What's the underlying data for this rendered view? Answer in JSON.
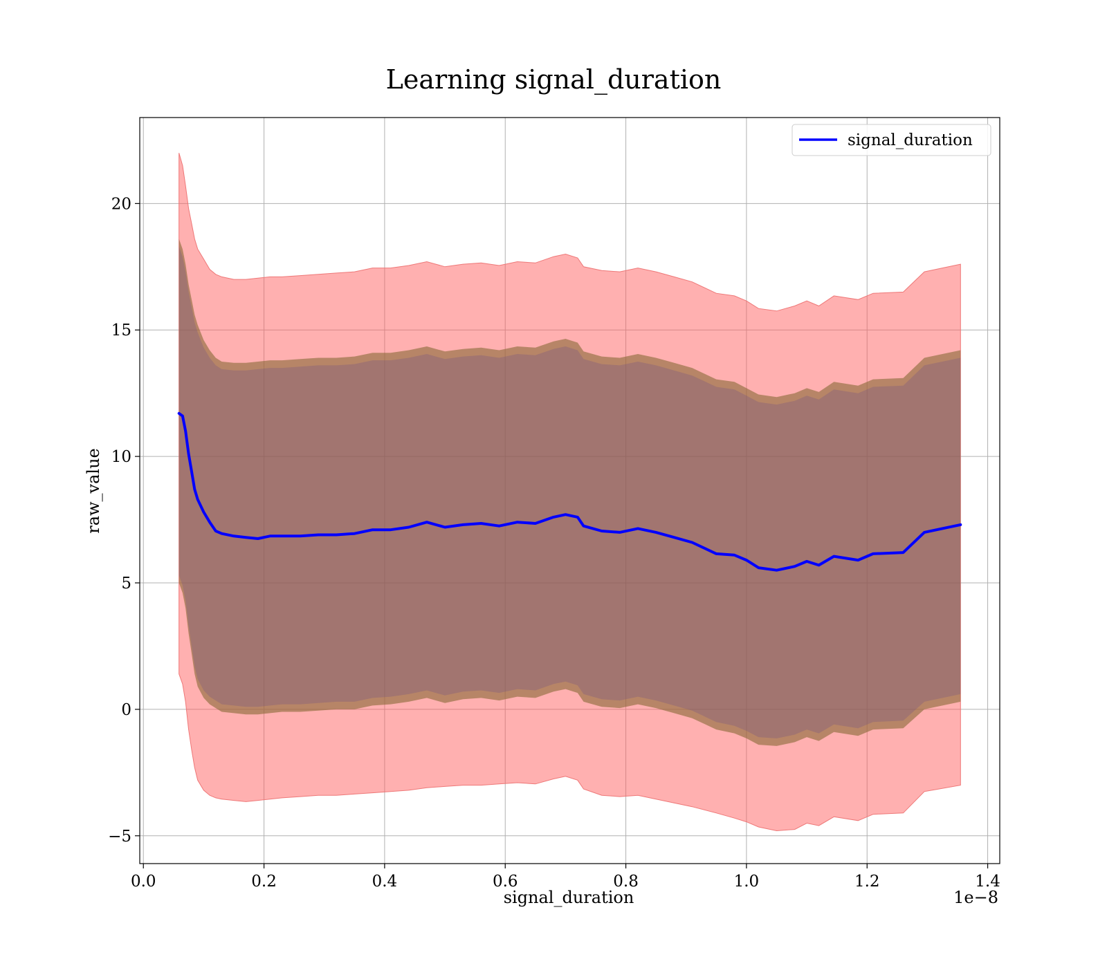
{
  "chart_data": {
    "type": "line",
    "title": "Learning signal_duration",
    "xlabel": "signal_duration",
    "ylabel": "raw_value",
    "x_offset_text": "1e−8",
    "xlim": [
      -0.006,
      1.42
    ],
    "ylim": [
      -6.1,
      23.4
    ],
    "x_ticks": [
      0.0,
      0.2,
      0.4,
      0.6,
      0.8,
      1.0,
      1.2,
      1.4
    ],
    "x_tick_labels": [
      "0.0",
      "0.2",
      "0.4",
      "0.6",
      "0.8",
      "1.0",
      "1.2",
      "1.4"
    ],
    "y_ticks": [
      -5,
      0,
      5,
      10,
      15,
      20
    ],
    "y_tick_labels": [
      "−5",
      "0",
      "5",
      "10",
      "15",
      "20"
    ],
    "grid": true,
    "legend_position": "top-right",
    "colors": {
      "line": "#0000ff",
      "outer_band": "#ff5a5a",
      "outer_band_edge": "#ee7777",
      "inner_band": "#8a6a3a",
      "inner_band_core": "#6a4a8a"
    },
    "x": [
      0.059,
      0.065,
      0.07,
      0.075,
      0.08,
      0.085,
      0.09,
      0.1,
      0.11,
      0.12,
      0.13,
      0.15,
      0.17,
      0.19,
      0.21,
      0.23,
      0.26,
      0.29,
      0.32,
      0.35,
      0.38,
      0.41,
      0.44,
      0.47,
      0.5,
      0.53,
      0.56,
      0.59,
      0.62,
      0.65,
      0.68,
      0.7,
      0.72,
      0.73,
      0.76,
      0.79,
      0.82,
      0.85,
      0.88,
      0.91,
      0.95,
      0.98,
      1.0,
      1.02,
      1.05,
      1.08,
      1.1,
      1.12,
      1.145,
      1.185,
      1.21,
      1.26,
      1.295,
      1.355
    ],
    "series": [
      {
        "name": "signal_duration",
        "values": [
          11.7,
          11.6,
          11.0,
          10.1,
          9.4,
          8.7,
          8.3,
          7.8,
          7.4,
          7.05,
          6.95,
          6.85,
          6.8,
          6.75,
          6.85,
          6.85,
          6.85,
          6.9,
          6.9,
          6.95,
          7.1,
          7.1,
          7.2,
          7.4,
          7.2,
          7.3,
          7.35,
          7.25,
          7.4,
          7.35,
          7.6,
          7.7,
          7.6,
          7.25,
          7.05,
          7.0,
          7.15,
          7.0,
          6.8,
          6.6,
          6.15,
          6.1,
          5.9,
          5.6,
          5.5,
          5.65,
          5.85,
          5.7,
          6.05,
          5.9,
          6.15,
          6.2,
          7.0,
          7.3
        ]
      }
    ],
    "bands": [
      {
        "kind": "outer",
        "lower": [
          1.4,
          1.0,
          0.3,
          -0.8,
          -1.6,
          -2.3,
          -2.8,
          -3.2,
          -3.4,
          -3.5,
          -3.55,
          -3.6,
          -3.65,
          -3.6,
          -3.55,
          -3.5,
          -3.45,
          -3.4,
          -3.4,
          -3.35,
          -3.3,
          -3.25,
          -3.2,
          -3.1,
          -3.05,
          -3.0,
          -3.0,
          -2.95,
          -2.9,
          -2.95,
          -2.75,
          -2.65,
          -2.8,
          -3.15,
          -3.4,
          -3.45,
          -3.4,
          -3.55,
          -3.7,
          -3.85,
          -4.1,
          -4.3,
          -4.45,
          -4.65,
          -4.8,
          -4.75,
          -4.5,
          -4.6,
          -4.25,
          -4.4,
          -4.15,
          -4.1,
          -3.25,
          -3.0
        ],
        "upper": [
          22.0,
          21.5,
          20.7,
          19.8,
          19.2,
          18.6,
          18.2,
          17.8,
          17.4,
          17.2,
          17.1,
          17.0,
          17.0,
          17.05,
          17.1,
          17.1,
          17.15,
          17.2,
          17.25,
          17.3,
          17.45,
          17.45,
          17.55,
          17.7,
          17.5,
          17.6,
          17.65,
          17.55,
          17.7,
          17.65,
          17.9,
          18.0,
          17.85,
          17.5,
          17.35,
          17.3,
          17.45,
          17.3,
          17.1,
          16.9,
          16.45,
          16.35,
          16.15,
          15.85,
          15.75,
          15.95,
          16.15,
          15.95,
          16.35,
          16.2,
          16.45,
          16.5,
          17.3,
          17.6
        ]
      },
      {
        "kind": "inner",
        "lower": [
          5.0,
          4.6,
          4.0,
          3.0,
          2.2,
          1.4,
          0.9,
          0.45,
          0.2,
          0.05,
          -0.1,
          -0.15,
          -0.2,
          -0.2,
          -0.15,
          -0.1,
          -0.1,
          -0.05,
          0.0,
          0.0,
          0.15,
          0.2,
          0.3,
          0.45,
          0.25,
          0.4,
          0.45,
          0.35,
          0.5,
          0.45,
          0.7,
          0.8,
          0.65,
          0.3,
          0.1,
          0.05,
          0.2,
          0.05,
          -0.15,
          -0.35,
          -0.8,
          -0.95,
          -1.15,
          -1.4,
          -1.45,
          -1.3,
          -1.1,
          -1.25,
          -0.9,
          -1.05,
          -0.8,
          -0.75,
          0.0,
          0.3
        ],
        "upper": [
          18.6,
          18.2,
          17.6,
          16.8,
          16.2,
          15.6,
          15.2,
          14.6,
          14.2,
          13.9,
          13.75,
          13.7,
          13.7,
          13.75,
          13.8,
          13.8,
          13.85,
          13.9,
          13.9,
          13.95,
          14.1,
          14.1,
          14.2,
          14.35,
          14.15,
          14.25,
          14.3,
          14.2,
          14.35,
          14.3,
          14.55,
          14.65,
          14.5,
          14.15,
          13.95,
          13.9,
          14.05,
          13.9,
          13.7,
          13.5,
          13.05,
          12.95,
          12.7,
          12.45,
          12.35,
          12.5,
          12.7,
          12.55,
          12.95,
          12.8,
          13.05,
          13.1,
          13.9,
          14.2
        ]
      }
    ]
  }
}
